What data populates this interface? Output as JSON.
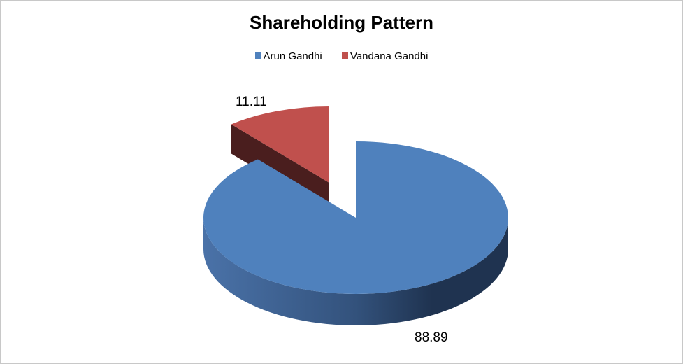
{
  "chart_data": {
    "type": "pie",
    "title": "Shareholding Pattern",
    "legend_position": "top",
    "three_d": true,
    "categories": [
      "Arun Gandhi",
      "Vandana Gandhi"
    ],
    "values": [
      88.89,
      11.11
    ],
    "colors": [
      "#4f81bd",
      "#c0504d"
    ],
    "data_labels": [
      "88.89",
      "11.11"
    ],
    "exploded": [
      "Vandana Gandhi"
    ]
  }
}
